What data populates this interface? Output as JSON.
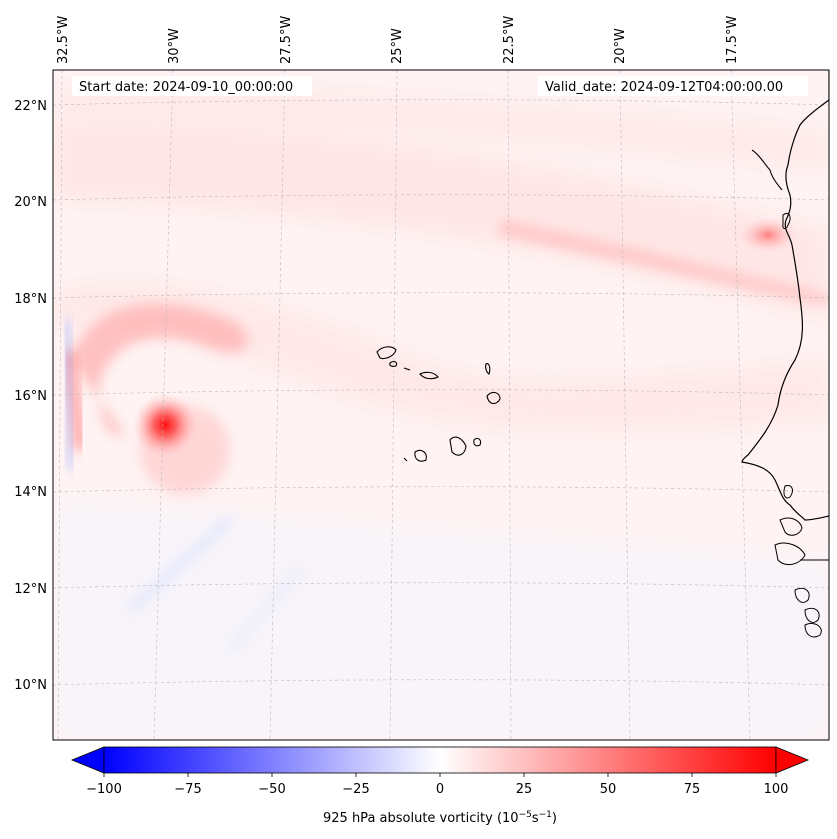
{
  "map": {
    "header_left": "Start date: 2024-09-10_00:00:00",
    "header_right": "Valid_date: 2024-09-12T04:00:00.00",
    "lon_labels": [
      "32.5°W",
      "30°W",
      "27.5°W",
      "25°W",
      "22.5°W",
      "20°W",
      "17.5°W"
    ],
    "lat_labels": [
      "22°N",
      "20°N",
      "18°N",
      "16°N",
      "14°N",
      "12°N",
      "10°N"
    ],
    "colorbar": {
      "min": -100,
      "max": 100,
      "ticks": [
        "−100",
        "−75",
        "−50",
        "−25",
        "0",
        "25",
        "50",
        "75",
        "100"
      ],
      "label_prefix": "925 hPa absolute vorticity (10",
      "label_exp1": "−5",
      "label_mid": "s",
      "label_exp2": "−1",
      "label_suffix": ")",
      "colors": {
        "negative": "#0000ff",
        "zero": "#ffffff",
        "positive": "#ff0000"
      }
    },
    "features": [
      {
        "name": "vortex-max",
        "value": 100
      },
      {
        "name": "coastal-max",
        "value": 40
      },
      {
        "name": "cape-verde-islands"
      }
    ]
  }
}
